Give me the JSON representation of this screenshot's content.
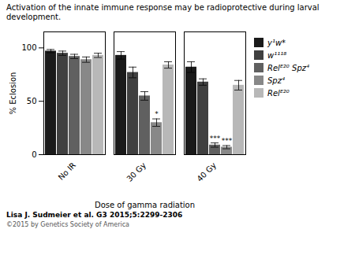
{
  "chart_data": {
    "type": "bar",
    "title": "Activation of the innate immune response may be radioprotective during larval development.",
    "xlabel": "Dose of gamma radiation",
    "ylabel": "% Eclosion",
    "categories": [
      "No IR",
      "30 Gy",
      "40 Gy"
    ],
    "series": [
      {
        "name": "y¹w*",
        "color": "#1a1a1a",
        "values": [
          97,
          93,
          82
        ],
        "errors": [
          1.5,
          3.5,
          5.0
        ]
      },
      {
        "name": "w¹¹¹⁸",
        "color": "#404040",
        "values": [
          95,
          77,
          68
        ],
        "errors": [
          2.0,
          5.0,
          3.0
        ]
      },
      {
        "name": "Relᴱ²⁰ Spz⁴",
        "color": "#606060",
        "values": [
          92,
          55,
          9
        ],
        "errors": [
          2.0,
          4.0,
          2.0
        ]
      },
      {
        "name": "Spz⁴",
        "color": "#888888",
        "values": [
          89,
          30,
          7
        ],
        "errors": [
          2.5,
          3.5,
          1.5
        ]
      },
      {
        "name": "Relᴱ²⁰",
        "color": "#b8b8b8",
        "values": [
          93,
          84,
          65
        ],
        "errors": [
          2.0,
          3.0,
          4.5
        ]
      }
    ],
    "annotations": [
      {
        "text": "*",
        "category": "30 Gy",
        "series": "Spz⁴"
      },
      {
        "text": "***",
        "category": "40 Gy",
        "series": "Relᴱ²⁰ Spz⁴"
      },
      {
        "text": "***",
        "category": "40 Gy",
        "series": "Spz⁴"
      }
    ],
    "ylim": [
      0,
      115
    ],
    "yticks": [
      0,
      50,
      100
    ],
    "grid": false,
    "legend": "right",
    "citation": "Lisa J. Sudmeier et al. G3 2015;5:2299-2306",
    "copyright": "©2015 by Genetics Society of America"
  }
}
